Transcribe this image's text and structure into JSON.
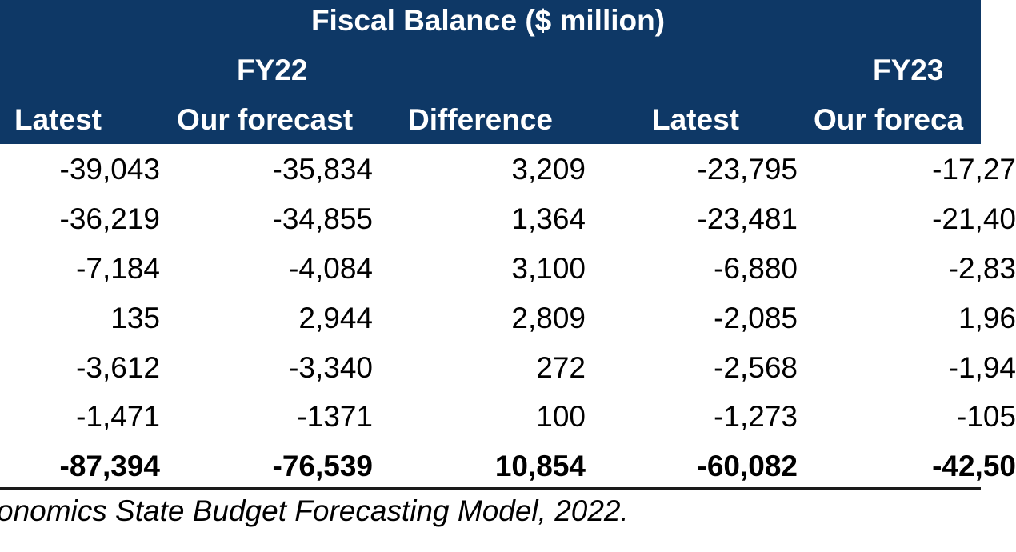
{
  "table": {
    "title": "Fiscal Balance ($ million)",
    "groups": [
      "FY22",
      "FY23"
    ],
    "columns": [
      "Latest",
      "Our forecast",
      "Difference",
      "Latest",
      "Our foreca"
    ],
    "rows": [
      [
        "-39,043",
        "-35,834",
        "3,209",
        "-23,795",
        "-17,27"
      ],
      [
        "-36,219",
        "-34,855",
        "1,364",
        "-23,481",
        "-21,40"
      ],
      [
        "-7,184",
        "-4,084",
        "3,100",
        "-6,880",
        "-2,83"
      ],
      [
        "135",
        "2,944",
        "2,809",
        "-2,085",
        "1,96"
      ],
      [
        "-3,612",
        "-3,340",
        "272",
        "-2,568",
        "-1,94"
      ],
      [
        "-1,471",
        "-1371",
        "100",
        "-1,273",
        "-105"
      ]
    ],
    "total": [
      "-87,394",
      "-76,539",
      "10,854",
      "-60,082",
      "-42,50"
    ]
  },
  "source_note": "onomics State Budget Forecasting Model, 2022.",
  "colors": {
    "header_bg": "#0e3866",
    "header_text": "#ffffff",
    "body_text": "#000000"
  }
}
